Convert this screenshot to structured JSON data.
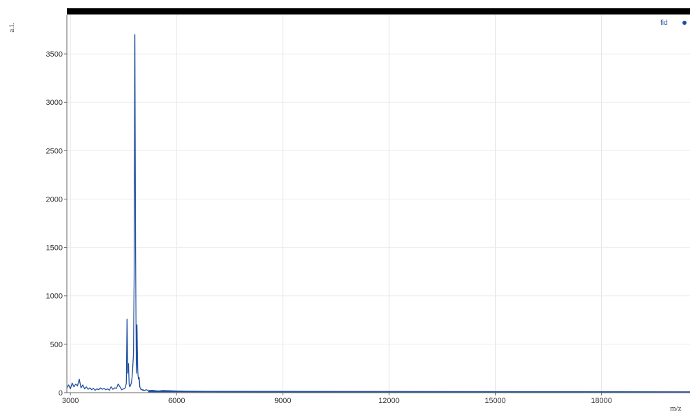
{
  "chart_data": {
    "type": "line",
    "title": "",
    "xlabel": "m/z",
    "ylabel": "a.i.",
    "xlim": [
      2900,
      20500
    ],
    "ylim": [
      0,
      3900
    ],
    "xticks": [
      3000,
      6000,
      9000,
      12000,
      15000,
      18000
    ],
    "yticks": [
      0,
      500,
      1000,
      1500,
      2000,
      2500,
      3000,
      3500
    ],
    "grid": true,
    "legend": {
      "entries": [
        "fid"
      ],
      "placement": "top-right"
    },
    "series": [
      {
        "name": "fid",
        "color": "#1f4e9e",
        "x": [
          2900,
          2950,
          3000,
          3050,
          3100,
          3150,
          3200,
          3250,
          3300,
          3350,
          3400,
          3450,
          3500,
          3550,
          3600,
          3650,
          3700,
          3750,
          3800,
          3850,
          3900,
          3950,
          4000,
          4050,
          4100,
          4150,
          4200,
          4250,
          4300,
          4350,
          4400,
          4450,
          4500,
          4550,
          4580,
          4600,
          4620,
          4640,
          4660,
          4680,
          4700,
          4720,
          4740,
          4760,
          4780,
          4800,
          4820,
          4840,
          4860,
          4870,
          4880,
          4890,
          4900,
          4910,
          4920,
          4940,
          4960,
          4980,
          5000,
          5020,
          5040,
          5060,
          5080,
          5100,
          5150,
          5200,
          5300,
          5400,
          5500,
          5600,
          5800,
          6000,
          6300,
          6600,
          7000,
          7500,
          8000,
          8500,
          9000,
          10000,
          11000,
          12000,
          13000,
          14000,
          15000,
          16000,
          17000,
          18000,
          19000,
          20000,
          20500
        ],
        "y": [
          50,
          80,
          40,
          100,
          60,
          90,
          70,
          140,
          50,
          80,
          40,
          60,
          35,
          50,
          30,
          45,
          25,
          40,
          30,
          50,
          35,
          45,
          30,
          40,
          25,
          60,
          35,
          50,
          45,
          90,
          60,
          30,
          40,
          50,
          100,
          760,
          200,
          300,
          80,
          60,
          80,
          100,
          150,
          250,
          400,
          1200,
          3700,
          1500,
          300,
          200,
          700,
          450,
          250,
          180,
          140,
          160,
          60,
          40,
          30,
          35,
          25,
          30,
          20,
          25,
          30,
          20,
          25,
          20,
          18,
          22,
          20,
          18,
          15,
          14,
          12,
          10,
          12,
          9,
          10,
          8,
          9,
          8,
          7,
          8,
          7,
          6,
          7,
          6,
          6,
          5,
          5
        ]
      }
    ]
  }
}
